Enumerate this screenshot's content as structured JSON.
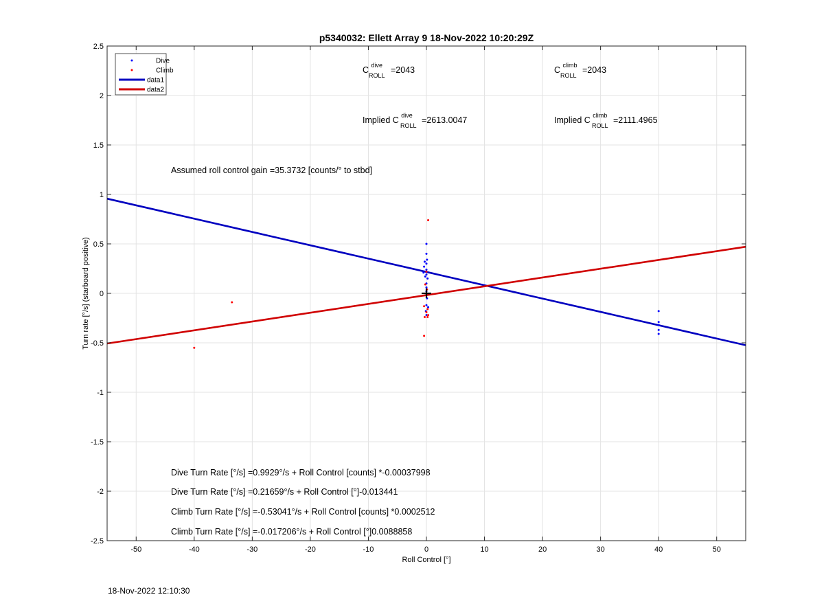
{
  "chart_data": {
    "type": "scatter",
    "title": "p5340032: Ellett Array 9 18-Nov-2022 10:20:29Z",
    "xlabel": "Roll Control [°]",
    "ylabel": "Turn rate [°/s] (starboard positive)",
    "xlim": [
      -55,
      55
    ],
    "ylim": [
      -2.5,
      2.5
    ],
    "xticks": [
      -50,
      -40,
      -30,
      -20,
      -10,
      0,
      10,
      20,
      30,
      40,
      50
    ],
    "xtick_labels": [
      "-50",
      "-40",
      "-30",
      "-20",
      "-10",
      "0",
      "10",
      "20",
      "30",
      "40",
      "50"
    ],
    "yticks": [
      2.5,
      2,
      1.5,
      1,
      0.5,
      0,
      -0.5,
      -1,
      -1.5,
      -2,
      -2.5
    ],
    "ytick_labels": [
      "2.5",
      "2",
      "1.5",
      "1",
      "0.5",
      "0",
      "-0.5",
      "-1",
      "-1.5",
      "-2",
      "-2.5"
    ],
    "grid": true,
    "legend_position": "top-left",
    "legend": [
      {
        "label": "Dive",
        "kind": "marker",
        "color": "#0000ff"
      },
      {
        "label": "Climb",
        "kind": "marker",
        "color": "#ff0000"
      },
      {
        "label": "data1",
        "kind": "line",
        "color": "#0000c0"
      },
      {
        "label": "data2",
        "kind": "line",
        "color": "#d00000"
      }
    ],
    "series": [
      {
        "name": "Dive",
        "kind": "scatter",
        "color": "#0000ff",
        "points": [
          [
            0,
            0.5
          ],
          [
            0,
            0.4
          ],
          [
            0.1,
            0.34
          ],
          [
            -0.3,
            0.32
          ],
          [
            0,
            0.3
          ],
          [
            -0.4,
            0.27
          ],
          [
            0,
            0.24
          ],
          [
            -0.5,
            0.21
          ],
          [
            0,
            0.19
          ],
          [
            -0.2,
            0.17
          ],
          [
            0.2,
            0.15
          ],
          [
            0,
            0.1
          ],
          [
            0,
            0.06
          ],
          [
            0,
            0.02
          ],
          [
            0,
            -0.02
          ],
          [
            0.1,
            -0.05
          ],
          [
            0,
            -0.12
          ],
          [
            0.3,
            -0.14
          ],
          [
            -0.1,
            -0.18
          ],
          [
            0,
            -0.22
          ],
          [
            40,
            -0.18
          ],
          [
            40,
            -0.29
          ],
          [
            40,
            -0.32
          ],
          [
            40,
            -0.37
          ],
          [
            40,
            -0.41
          ]
        ]
      },
      {
        "name": "Climb",
        "kind": "scatter",
        "color": "#ff0000",
        "points": [
          [
            0.3,
            0.74
          ],
          [
            0,
            0.22
          ],
          [
            -0.2,
            0.09
          ],
          [
            0.1,
            0.04
          ],
          [
            0,
            -0.02
          ],
          [
            -0.4,
            -0.13
          ],
          [
            0.2,
            -0.16
          ],
          [
            0,
            -0.19
          ],
          [
            0.3,
            -0.22
          ],
          [
            -0.3,
            -0.24
          ],
          [
            0.2,
            -0.24
          ],
          [
            -0.4,
            -0.43
          ],
          [
            -33.5,
            -0.09
          ],
          [
            -40,
            -0.55
          ]
        ]
      },
      {
        "name": "data1",
        "kind": "line",
        "color": "#0000c0",
        "x": [
          -55,
          55
        ],
        "y": [
          0.957,
          -0.524
        ]
      },
      {
        "name": "data2",
        "kind": "line",
        "color": "#d00000",
        "x": [
          -55,
          55
        ],
        "y": [
          -0.507,
          0.471
        ]
      }
    ],
    "marker": {
      "kind": "plus",
      "x": 0,
      "y": 0,
      "color": "#000000"
    },
    "annotations": {
      "c_dive_value": "=2043",
      "c_climb_value": "=2043",
      "implied_prefix": "Implied ",
      "implied_dive_value": "=2613.0047",
      "implied_climb_value": "=2111.4965",
      "c_letter": "C",
      "sub_roll": "ROLL",
      "sup_dive": "dive",
      "sup_climb": "climb",
      "gain": "Assumed roll control gain =35.3732 [counts/° to stbd]",
      "eq1": "Dive Turn Rate [°/s] =0.9929°/s + Roll Control [counts] *-0.00037998",
      "eq2": "Dive Turn Rate [°/s] =0.21659°/s + Roll Control [°]-0.013441",
      "eq3": "Climb Turn Rate [°/s] =-0.53041°/s + Roll Control [counts] *0.0002512",
      "eq4": "Climb Turn Rate [°/s] =-0.017206°/s + Roll Control [°]0.0088858"
    }
  },
  "footer": {
    "timestamp": "18-Nov-2022 12:10:30"
  }
}
